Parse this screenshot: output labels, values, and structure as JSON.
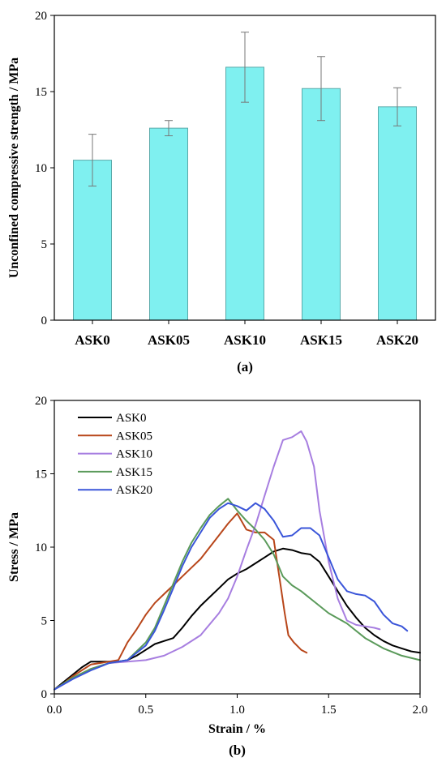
{
  "chart_data": [
    {
      "type": "bar",
      "categories": [
        "ASK0",
        "ASK05",
        "ASK10",
        "ASK15",
        "ASK20"
      ],
      "values": [
        10.5,
        12.6,
        16.6,
        15.2,
        14.0
      ],
      "errors": [
        1.7,
        0.5,
        2.3,
        2.1,
        1.25
      ],
      "ylabel": "Unconfined compressive strength / MPa",
      "xlabel": "",
      "ylim": [
        0,
        20
      ],
      "yticks": [
        0,
        5,
        10,
        15,
        20
      ],
      "panel_label": "(a)",
      "bar_color": "#7ff0f0",
      "bar_edge_color": "#5aaaaa"
    },
    {
      "type": "line",
      "xlabel": "Strain / %",
      "ylabel": "Stress / MPa",
      "xlim": [
        0,
        2.0
      ],
      "ylim": [
        0,
        20
      ],
      "xticks": [
        "0.0",
        "0.5",
        "1.0",
        "1.5",
        "2.0"
      ],
      "yticks": [
        0,
        5,
        10,
        15,
        20
      ],
      "panel_label": "(b)",
      "legend_position": "top-left",
      "series": [
        {
          "name": "ASK0",
          "color": "#000000",
          "x": [
            0,
            0.05,
            0.1,
            0.15,
            0.2,
            0.25,
            0.3,
            0.35,
            0.4,
            0.45,
            0.5,
            0.55,
            0.6,
            0.65,
            0.7,
            0.75,
            0.8,
            0.85,
            0.9,
            0.95,
            1.0,
            1.05,
            1.1,
            1.15,
            1.2,
            1.25,
            1.3,
            1.35,
            1.4,
            1.45,
            1.5,
            1.55,
            1.6,
            1.65,
            1.7,
            1.75,
            1.8,
            1.85,
            1.9,
            1.95,
            2.0
          ],
          "y": [
            0.3,
            0.8,
            1.3,
            1.8,
            2.2,
            2.2,
            2.2,
            2.2,
            2.3,
            2.6,
            3.0,
            3.4,
            3.6,
            3.8,
            4.5,
            5.3,
            6.0,
            6.6,
            7.2,
            7.8,
            8.2,
            8.5,
            8.9,
            9.3,
            9.7,
            9.9,
            9.8,
            9.6,
            9.5,
            9.0,
            8.0,
            7.0,
            6.0,
            5.2,
            4.5,
            4.0,
            3.6,
            3.3,
            3.1,
            2.9,
            2.8
          ]
        },
        {
          "name": "ASK05",
          "color": "#b8461a",
          "x": [
            0,
            0.05,
            0.1,
            0.15,
            0.2,
            0.25,
            0.3,
            0.35,
            0.4,
            0.45,
            0.5,
            0.55,
            0.6,
            0.65,
            0.7,
            0.75,
            0.8,
            0.85,
            0.9,
            0.95,
            1.0,
            1.05,
            1.1,
            1.15,
            1.2,
            1.23,
            1.26,
            1.28,
            1.31,
            1.35,
            1.38
          ],
          "y": [
            0.3,
            0.7,
            1.2,
            1.6,
            2.0,
            2.1,
            2.2,
            2.3,
            3.5,
            4.4,
            5.4,
            6.2,
            6.8,
            7.4,
            8.0,
            8.6,
            9.2,
            10.0,
            10.8,
            11.6,
            12.3,
            11.2,
            11.0,
            11.0,
            10.5,
            8.0,
            5.5,
            4.0,
            3.5,
            3.0,
            2.8
          ]
        },
        {
          "name": "ASK10",
          "color": "#a77ee0",
          "x": [
            0,
            0.1,
            0.2,
            0.3,
            0.4,
            0.5,
            0.6,
            0.7,
            0.8,
            0.9,
            0.95,
            1.0,
            1.05,
            1.1,
            1.15,
            1.2,
            1.25,
            1.3,
            1.35,
            1.38,
            1.42,
            1.45,
            1.5,
            1.55,
            1.6,
            1.65,
            1.7,
            1.75,
            1.78
          ],
          "y": [
            0.3,
            1.0,
            1.7,
            2.1,
            2.2,
            2.3,
            2.6,
            3.2,
            4.0,
            5.5,
            6.5,
            8.0,
            9.8,
            11.5,
            13.5,
            15.5,
            17.3,
            17.5,
            17.9,
            17.2,
            15.5,
            12.5,
            9.0,
            6.5,
            5.0,
            4.7,
            4.6,
            4.5,
            4.4
          ]
        },
        {
          "name": "ASK15",
          "color": "#5a9a5a",
          "x": [
            0,
            0.1,
            0.2,
            0.3,
            0.4,
            0.5,
            0.55,
            0.6,
            0.65,
            0.7,
            0.75,
            0.8,
            0.85,
            0.9,
            0.95,
            1.0,
            1.05,
            1.1,
            1.15,
            1.2,
            1.25,
            1.3,
            1.35,
            1.4,
            1.5,
            1.6,
            1.7,
            1.8,
            1.9,
            2.0
          ],
          "y": [
            0.3,
            1.1,
            1.7,
            2.1,
            2.3,
            3.5,
            4.5,
            6.0,
            7.5,
            9.0,
            10.3,
            11.3,
            12.2,
            12.8,
            13.3,
            12.5,
            11.8,
            11.2,
            10.5,
            9.5,
            8.0,
            7.4,
            7.0,
            6.5,
            5.5,
            4.8,
            3.8,
            3.1,
            2.6,
            2.3
          ]
        },
        {
          "name": "ASK20",
          "color": "#3a55d9",
          "x": [
            0,
            0.1,
            0.2,
            0.3,
            0.4,
            0.5,
            0.55,
            0.6,
            0.65,
            0.7,
            0.75,
            0.8,
            0.85,
            0.9,
            0.95,
            1.0,
            1.05,
            1.1,
            1.15,
            1.2,
            1.25,
            1.3,
            1.35,
            1.4,
            1.45,
            1.5,
            1.55,
            1.6,
            1.65,
            1.7,
            1.75,
            1.8,
            1.85,
            1.9,
            1.93
          ],
          "y": [
            0.3,
            1.0,
            1.6,
            2.1,
            2.3,
            3.3,
            4.3,
            5.7,
            7.2,
            8.7,
            10.0,
            11.0,
            12.0,
            12.6,
            13.0,
            12.8,
            12.5,
            13.0,
            12.6,
            11.8,
            10.7,
            10.8,
            11.3,
            11.3,
            10.8,
            9.3,
            7.8,
            7.0,
            6.8,
            6.7,
            6.3,
            5.4,
            4.8,
            4.6,
            4.3
          ]
        }
      ]
    }
  ]
}
